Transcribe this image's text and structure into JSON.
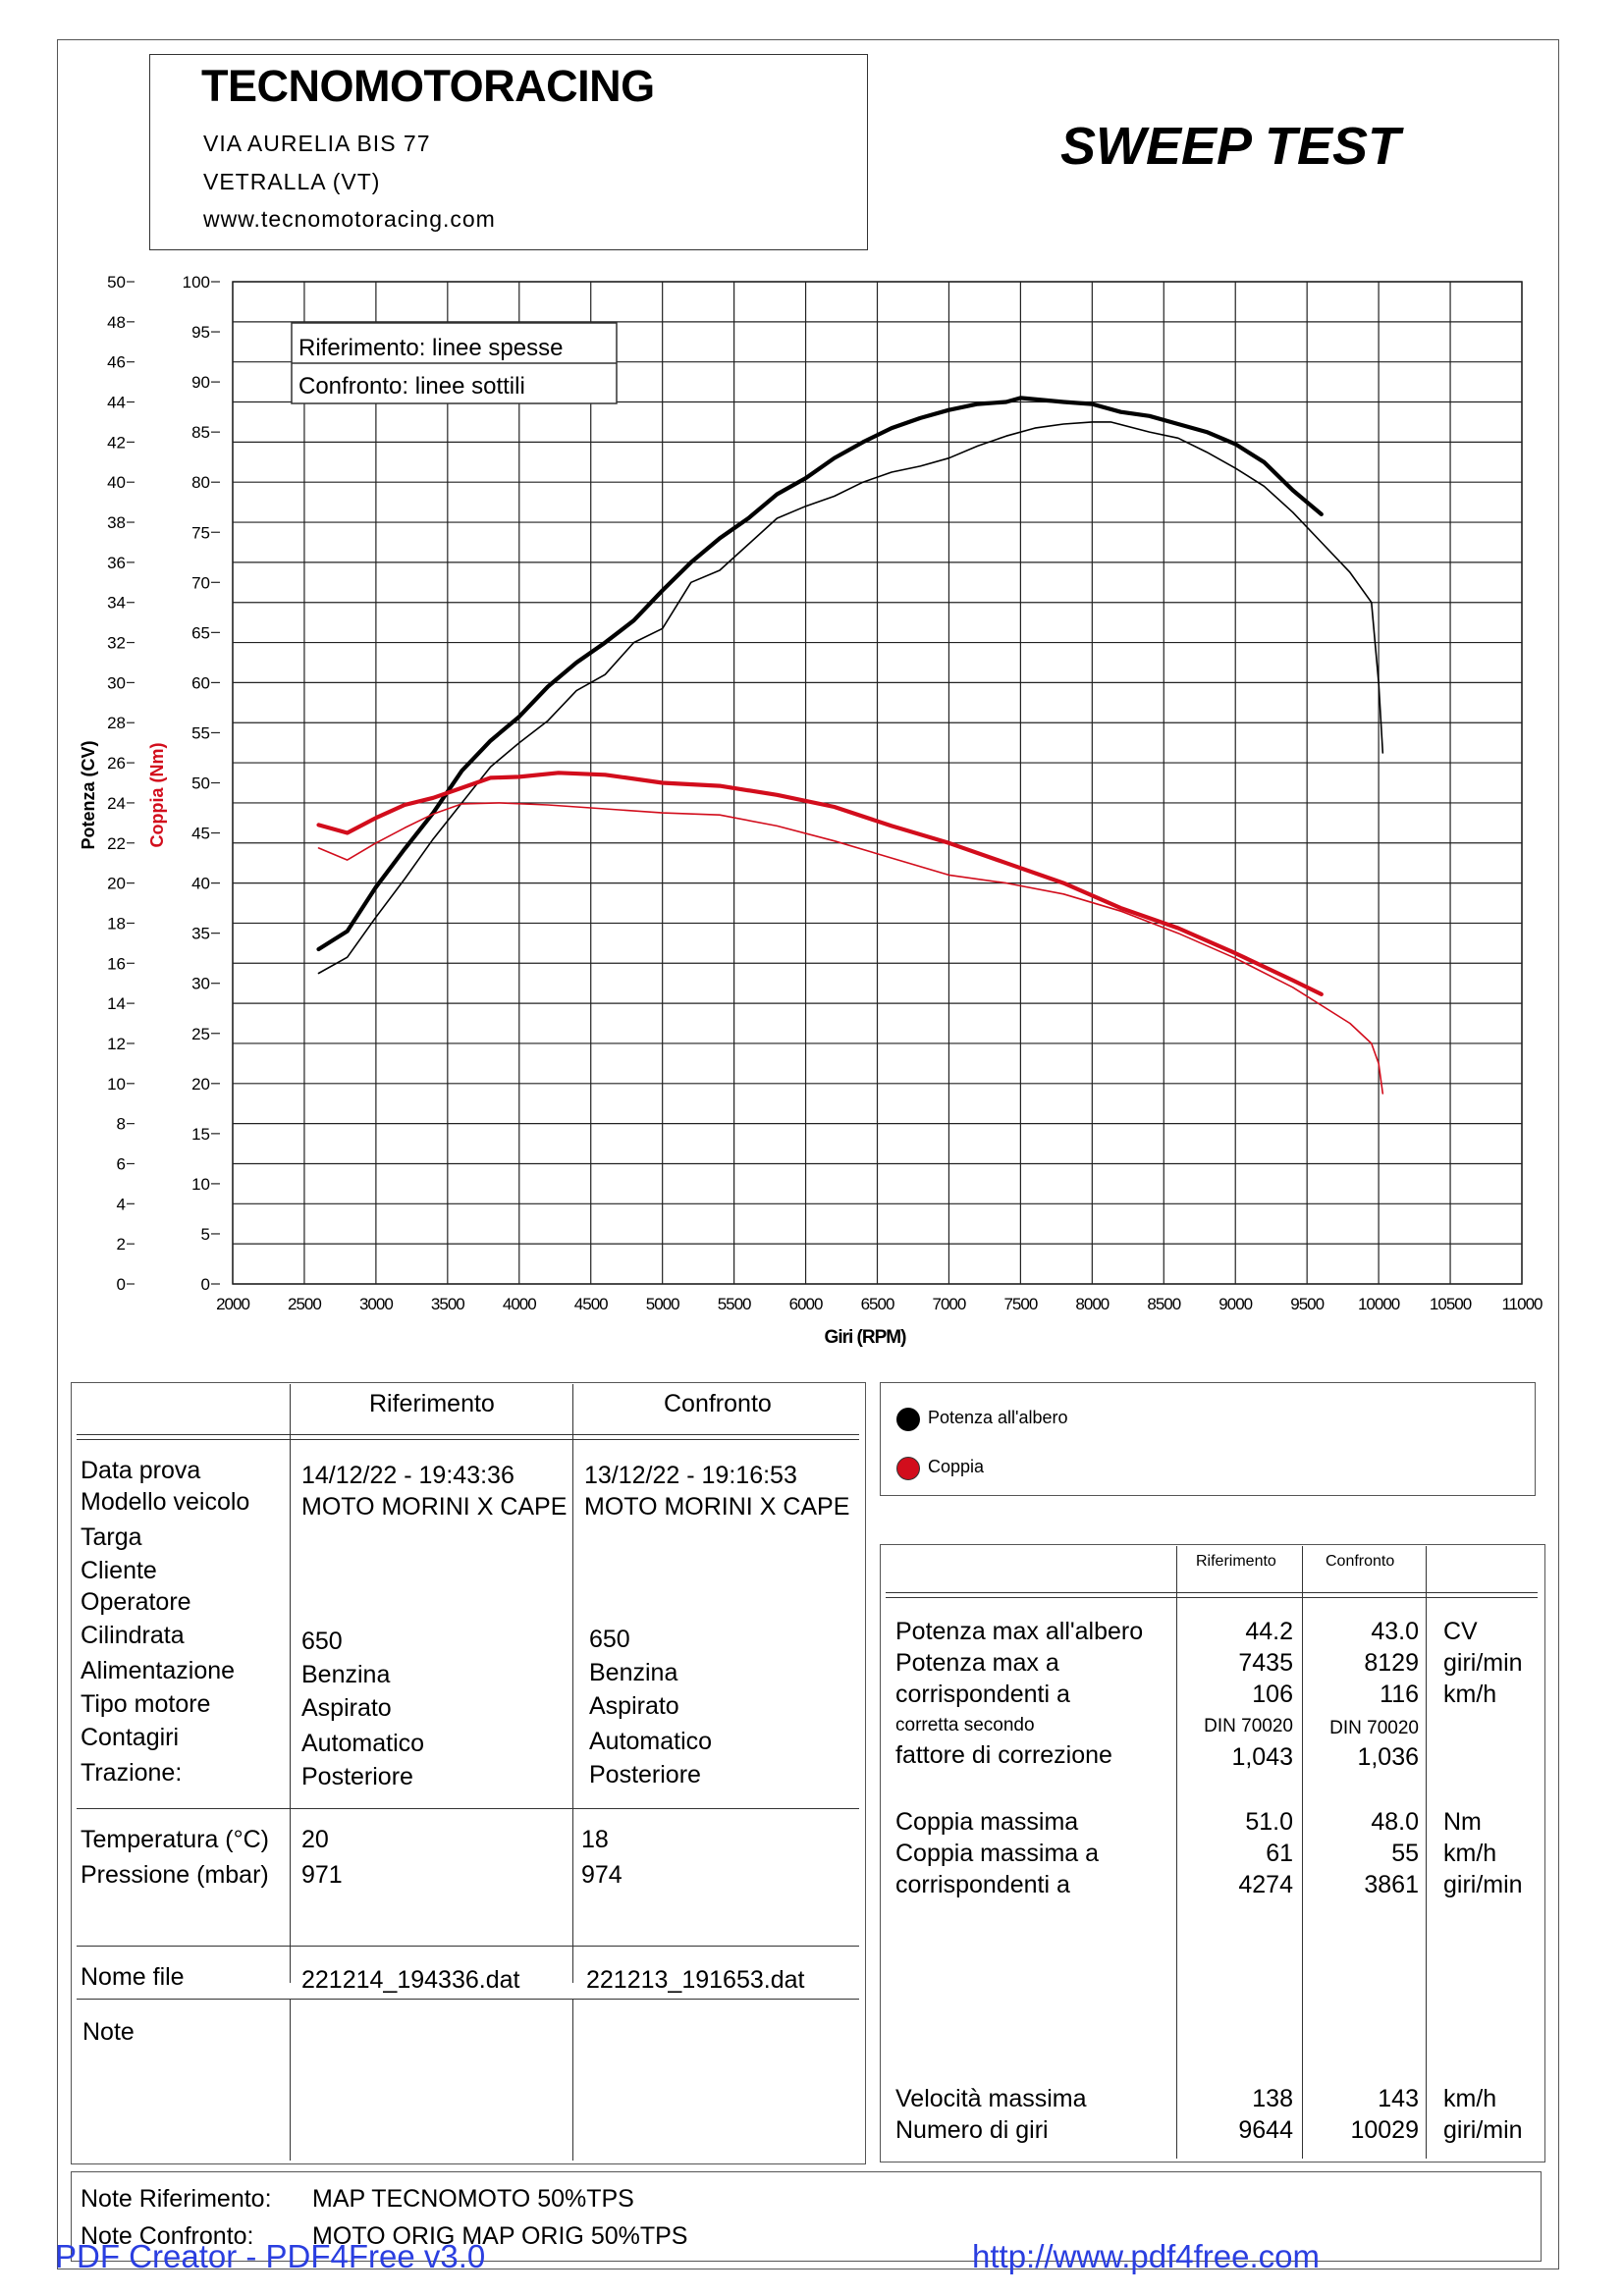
{
  "header": {
    "company": "TECNOMOTORACING",
    "address1": "VIA AURELIA BIS 77",
    "address2": "VETRALLA (VT)",
    "website": "www.tecnomotoracing.com",
    "test_type": "SWEEP TEST"
  },
  "chart_data": {
    "type": "line",
    "xlabel": "Giri (RPM)",
    "ylabel_left": "Potenza (CV)",
    "ylabel_right": "Coppia (Nm)",
    "x_ticks": [
      2000,
      2500,
      3000,
      3500,
      4000,
      4500,
      5000,
      5500,
      6000,
      6500,
      7000,
      7500,
      8000,
      8500,
      9000,
      9500,
      10000,
      10500,
      11000
    ],
    "xlim": [
      2000,
      11000
    ],
    "y_power_ticks": [
      0,
      2,
      4,
      6,
      8,
      10,
      12,
      14,
      16,
      18,
      20,
      22,
      24,
      26,
      28,
      30,
      32,
      34,
      36,
      38,
      40,
      42,
      44,
      46,
      48,
      50
    ],
    "ylim_power": [
      0,
      50
    ],
    "y_torque_ticks": [
      0,
      5,
      10,
      15,
      20,
      25,
      30,
      35,
      40,
      45,
      50,
      55,
      60,
      65,
      70,
      75,
      80,
      85,
      90,
      95,
      100
    ],
    "ylim_torque": [
      0,
      100
    ],
    "legend_note": [
      "Riferimento: linee spesse",
      "Confronto: linee sottili"
    ],
    "grid": true,
    "series": [
      {
        "name": "Potenza all'albero",
        "axis": "power",
        "run": "Riferimento",
        "color": "#000000",
        "x": [
          2600,
          2800,
          3000,
          3200,
          3400,
          3600,
          3800,
          4000,
          4200,
          4400,
          4600,
          4800,
          5000,
          5200,
          5400,
          5600,
          5800,
          6000,
          6200,
          6400,
          6600,
          6800,
          7000,
          7200,
          7400,
          7500,
          7800,
          8000,
          8200,
          8400,
          8600,
          8800,
          9000,
          9200,
          9400,
          9600
        ],
        "y": [
          16.7,
          17.6,
          19.8,
          21.7,
          23.5,
          25.6,
          27.1,
          28.3,
          29.8,
          31.0,
          32.0,
          33.1,
          34.6,
          36.0,
          37.2,
          38.2,
          39.4,
          40.2,
          41.2,
          42.0,
          42.7,
          43.2,
          43.6,
          43.9,
          44.0,
          44.2,
          44.0,
          43.9,
          43.5,
          43.3,
          42.9,
          42.5,
          41.9,
          41.0,
          39.6,
          38.4
        ]
      },
      {
        "name": "Potenza all'albero",
        "axis": "power",
        "run": "Confronto",
        "color": "#000000",
        "x": [
          2600,
          2800,
          3000,
          3200,
          3400,
          3600,
          3800,
          4000,
          4200,
          4400,
          4600,
          4800,
          5000,
          5200,
          5400,
          5600,
          5800,
          6000,
          6200,
          6400,
          6600,
          6800,
          7000,
          7200,
          7400,
          7600,
          7800,
          8000,
          8129,
          8400,
          8600,
          8800,
          9000,
          9200,
          9400,
          9600,
          9800,
          9950,
          10000,
          10029
        ],
        "y": [
          15.5,
          16.3,
          18.3,
          20.2,
          22.2,
          24.0,
          25.8,
          27.0,
          28.1,
          29.6,
          30.4,
          32.0,
          32.7,
          35.0,
          35.6,
          36.9,
          38.2,
          38.8,
          39.3,
          40.0,
          40.5,
          40.8,
          41.2,
          41.8,
          42.3,
          42.7,
          42.9,
          43.0,
          43.0,
          42.5,
          42.2,
          41.5,
          40.7,
          39.8,
          38.5,
          37.0,
          35.5,
          34.0,
          30.0,
          26.5
        ]
      },
      {
        "name": "Coppia",
        "axis": "torque",
        "run": "Riferimento",
        "color": "#d20d1c",
        "x": [
          2600,
          2800,
          3000,
          3200,
          3400,
          3600,
          3800,
          4000,
          4274,
          4600,
          5000,
          5400,
          5800,
          6200,
          6600,
          7000,
          7400,
          7800,
          8200,
          8600,
          9000,
          9400,
          9600
        ],
        "y": [
          45.8,
          45.0,
          46.5,
          47.8,
          48.5,
          49.5,
          50.5,
          50.6,
          51.0,
          50.8,
          50.0,
          49.7,
          48.8,
          47.6,
          45.7,
          44.0,
          42.0,
          40.0,
          37.5,
          35.5,
          33.0,
          30.3,
          28.9
        ]
      },
      {
        "name": "Coppia",
        "axis": "torque",
        "run": "Confronto",
        "color": "#d20d1c",
        "x": [
          2600,
          2800,
          3000,
          3200,
          3400,
          3600,
          3861,
          4200,
          4600,
          5000,
          5400,
          5800,
          6200,
          6600,
          7000,
          7400,
          7800,
          8200,
          8600,
          9000,
          9400,
          9800,
          9950,
          10000,
          10029
        ],
        "y": [
          43.5,
          42.3,
          44.0,
          45.5,
          46.9,
          47.9,
          48.0,
          47.8,
          47.4,
          47.0,
          46.8,
          45.7,
          44.2,
          42.5,
          40.8,
          40.0,
          38.9,
          37.2,
          35.0,
          32.5,
          29.6,
          26.0,
          24.0,
          22.0,
          19.0
        ]
      }
    ]
  },
  "table": {
    "col_ref": "Riferimento",
    "col_cmp": "Confronto",
    "labels": [
      "Data prova",
      "Modello veicolo",
      "Targa",
      "Cliente",
      "Operatore",
      "Cilindrata",
      "Alimentazione",
      "Tipo motore",
      "Contagiri",
      "Trazione:"
    ],
    "ref_date": "14/12/22 - 19:43:36",
    "cmp_date": "13/12/22 - 19:16:53",
    "ref_model": "MOTO MORINI X CAPE",
    "cmp_model": "MOTO MORINI X CAPE",
    "ref_vals": [
      "650",
      "Benzina",
      "Aspirato",
      "Automatico",
      "Posteriore"
    ],
    "cmp_vals": [
      "650",
      "Benzina",
      "Aspirato",
      "Automatico",
      "Posteriore"
    ],
    "temp_label": "Temperatura (°C)",
    "press_label": "Pressione (mbar)",
    "ref_temp": "20",
    "cmp_temp": "18",
    "ref_press": "971",
    "cmp_press": "974",
    "file_label": "Nome file",
    "ref_file": "221214_194336.dat",
    "cmp_file": "221213_191653.dat",
    "note_label": "Note"
  },
  "legend": {
    "power": "Potenza all'albero",
    "torque": "Coppia",
    "power_color": "#000000",
    "torque_color": "#d20d1c"
  },
  "results": {
    "col_ref": "Riferimento",
    "col_cmp": "Confronto",
    "power_labels": [
      "Potenza max all'albero",
      "Potenza max a",
      "corrispondenti a"
    ],
    "corr_label": "corretta secondo",
    "factor_label": "fattore di correzione",
    "ref_power": [
      "44.2",
      "7435",
      "106"
    ],
    "cmp_power": [
      "43.0",
      "8129",
      "116"
    ],
    "power_units": [
      "CV",
      "giri/min",
      "km/h"
    ],
    "ref_norm": "DIN 70020",
    "cmp_norm": "DIN 70020",
    "ref_factor": "1,043",
    "cmp_factor": "1,036",
    "torque_labels": [
      "Coppia massima",
      "Coppia massima a",
      "corrispondenti a"
    ],
    "ref_torque": [
      "51.0",
      "61",
      "4274"
    ],
    "cmp_torque": [
      "48.0",
      "55",
      "3861"
    ],
    "torque_units": [
      "Nm",
      "km/h",
      "giri/min"
    ],
    "speed_labels": [
      "Velocità massima",
      "Numero di giri"
    ],
    "ref_speed": [
      "138",
      "9644"
    ],
    "cmp_speed": [
      "143",
      "10029"
    ],
    "speed_units": [
      "km/h",
      "giri/min"
    ]
  },
  "notes": {
    "ref_label": "Note Riferimento:",
    "ref_value": "MAP TECNOMOTO 50%TPS",
    "cmp_label": "Note Confronto:",
    "cmp_value": "MOTO ORIG MAP ORIG 50%TPS"
  },
  "watermark": {
    "left": "PDF Creator - PDF4Free v3.0",
    "right": "http://www.pdf4free.com"
  }
}
